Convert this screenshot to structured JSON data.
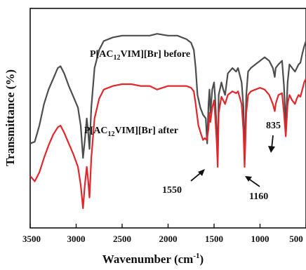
{
  "chart_data": {
    "type": "line",
    "xlabel_main": "Wavenumber (cm",
    "xlabel_sup": "-1",
    "xlabel_end": ")",
    "ylabel": "Transmittance (%)",
    "xlim": [
      3500,
      500
    ],
    "x_reversed": true,
    "yticks_shown": false,
    "x_ticks": [
      3500,
      3000,
      2500,
      2000,
      1500,
      1000,
      500
    ],
    "x_tick_labels": [
      "3500",
      "3000",
      "2500",
      "2000",
      "1500",
      "1000",
      "500"
    ],
    "grid": false,
    "ylim": [
      0,
      100
    ],
    "series": [
      {
        "label_main": "P[AC",
        "label_sub": "12",
        "label_rest": "VIM][Br] before",
        "color": "#4d4d4d",
        "points": [
          [
            3500,
            28
          ],
          [
            3450,
            29
          ],
          [
            3400,
            38
          ],
          [
            3350,
            50
          ],
          [
            3300,
            58
          ],
          [
            3250,
            64
          ],
          [
            3200,
            70
          ],
          [
            3170,
            71
          ],
          [
            3130,
            67
          ],
          [
            3080,
            60
          ],
          [
            3030,
            54
          ],
          [
            2980,
            48
          ],
          [
            2950,
            38
          ],
          [
            2925,
            20
          ],
          [
            2905,
            30
          ],
          [
            2885,
            42
          ],
          [
            2870,
            35
          ],
          [
            2855,
            25
          ],
          [
            2835,
            48
          ],
          [
            2800,
            70
          ],
          [
            2750,
            80
          ],
          [
            2700,
            85
          ],
          [
            2600,
            87
          ],
          [
            2500,
            88
          ],
          [
            2400,
            88
          ],
          [
            2300,
            88
          ],
          [
            2200,
            88
          ],
          [
            2120,
            89
          ],
          [
            2000,
            88
          ],
          [
            1900,
            88
          ],
          [
            1800,
            86
          ],
          [
            1750,
            84
          ],
          [
            1720,
            80
          ],
          [
            1700,
            70
          ],
          [
            1680,
            55
          ],
          [
            1650,
            48
          ],
          [
            1620,
            44
          ],
          [
            1590,
            42
          ],
          [
            1575,
            28
          ],
          [
            1560,
            50
          ],
          [
            1550,
            58
          ],
          [
            1540,
            45
          ],
          [
            1520,
            58
          ],
          [
            1500,
            62
          ],
          [
            1490,
            55
          ],
          [
            1470,
            35
          ],
          [
            1460,
            20
          ],
          [
            1450,
            55
          ],
          [
            1420,
            62
          ],
          [
            1400,
            58
          ],
          [
            1380,
            55
          ],
          [
            1350,
            67
          ],
          [
            1300,
            70
          ],
          [
            1260,
            68
          ],
          [
            1240,
            70
          ],
          [
            1200,
            62
          ],
          [
            1180,
            48
          ],
          [
            1168,
            20
          ],
          [
            1150,
            55
          ],
          [
            1130,
            68
          ],
          [
            1100,
            70
          ],
          [
            1050,
            72
          ],
          [
            1000,
            74
          ],
          [
            950,
            76
          ],
          [
            900,
            74
          ],
          [
            860,
            70
          ],
          [
            840,
            65
          ],
          [
            830,
            70
          ],
          [
            800,
            72
          ],
          [
            760,
            74
          ],
          [
            740,
            60
          ],
          [
            720,
            38
          ],
          [
            700,
            62
          ],
          [
            680,
            72
          ],
          [
            650,
            70
          ],
          [
            620,
            68
          ],
          [
            600,
            70
          ],
          [
            580,
            72
          ],
          [
            560,
            73
          ],
          [
            540,
            78
          ],
          [
            520,
            82
          ],
          [
            500,
            85
          ]
        ]
      },
      {
        "label_main": "P[AC",
        "label_sub": "12",
        "label_rest": "VIM][Br] after",
        "color": "#e0272b",
        "points": [
          [
            3500,
            10
          ],
          [
            3450,
            7
          ],
          [
            3400,
            12
          ],
          [
            3350,
            20
          ],
          [
            3300,
            27
          ],
          [
            3250,
            33
          ],
          [
            3200,
            37
          ],
          [
            3170,
            38
          ],
          [
            3130,
            34
          ],
          [
            3080,
            28
          ],
          [
            3030,
            22
          ],
          [
            2980,
            15
          ],
          [
            2950,
            5
          ],
          [
            2925,
            -8
          ],
          [
            2905,
            5
          ],
          [
            2885,
            15
          ],
          [
            2870,
            8
          ],
          [
            2855,
            -2
          ],
          [
            2835,
            20
          ],
          [
            2800,
            42
          ],
          [
            2750,
            53
          ],
          [
            2700,
            58
          ],
          [
            2600,
            60
          ],
          [
            2500,
            61
          ],
          [
            2400,
            61
          ],
          [
            2300,
            60
          ],
          [
            2200,
            60
          ],
          [
            2120,
            58
          ],
          [
            2000,
            60
          ],
          [
            1900,
            60
          ],
          [
            1800,
            60
          ],
          [
            1750,
            59
          ],
          [
            1720,
            57
          ],
          [
            1700,
            50
          ],
          [
            1670,
            38
          ],
          [
            1640,
            33
          ],
          [
            1620,
            30
          ],
          [
            1600,
            31
          ],
          [
            1580,
            30
          ],
          [
            1560,
            36
          ],
          [
            1550,
            45
          ],
          [
            1540,
            40
          ],
          [
            1520,
            48
          ],
          [
            1500,
            52
          ],
          [
            1490,
            45
          ],
          [
            1470,
            28
          ],
          [
            1460,
            15
          ],
          [
            1450,
            45
          ],
          [
            1420,
            54
          ],
          [
            1400,
            52
          ],
          [
            1380,
            50
          ],
          [
            1350,
            55
          ],
          [
            1300,
            57
          ],
          [
            1260,
            56
          ],
          [
            1240,
            57
          ],
          [
            1200,
            50
          ],
          [
            1180,
            35
          ],
          [
            1168,
            15
          ],
          [
            1150,
            45
          ],
          [
            1130,
            55
          ],
          [
            1100,
            57
          ],
          [
            1050,
            58
          ],
          [
            1000,
            59
          ],
          [
            950,
            58
          ],
          [
            900,
            55
          ],
          [
            860,
            50
          ],
          [
            840,
            46
          ],
          [
            830,
            50
          ],
          [
            800,
            55
          ],
          [
            760,
            56
          ],
          [
            740,
            45
          ],
          [
            720,
            32
          ],
          [
            700,
            50
          ],
          [
            680,
            55
          ],
          [
            650,
            52
          ],
          [
            620,
            50
          ],
          [
            600,
            53
          ],
          [
            580,
            55
          ],
          [
            560,
            54
          ],
          [
            540,
            58
          ],
          [
            520,
            62
          ],
          [
            500,
            64
          ]
        ]
      }
    ],
    "annotations": [
      {
        "text": "1550",
        "x": 1550
      },
      {
        "text": "1160",
        "x": 1160
      },
      {
        "text": "835",
        "x": 835
      }
    ]
  }
}
